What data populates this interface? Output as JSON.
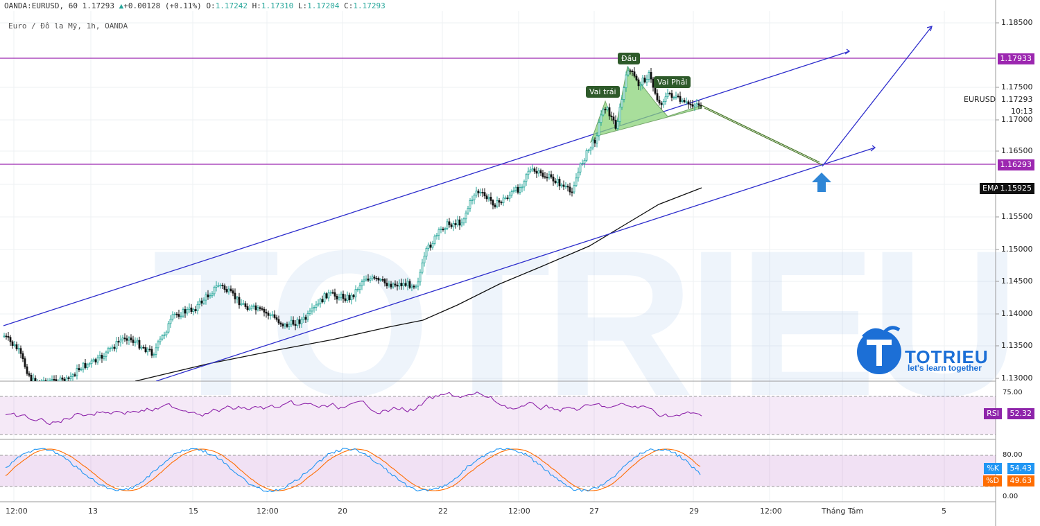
{
  "header": {
    "symbol": "OANDA:EURUSD",
    "interval": "60",
    "last": "1.17293",
    "change_arrow": "▲",
    "change": "+0.00128 (+0.11%)",
    "o_label": "O:",
    "o": "1.17242",
    "h_label": "H:",
    "h": "1.17310",
    "l_label": "L:",
    "l": "1.17204",
    "c_label": "C:",
    "c": "1.17293"
  },
  "subtitle": "Euro / Đô la Mỹ, 1h, OANDA",
  "watermark": {
    "logo_text": "TOTRIEU",
    "slogan": "let's learn together"
  },
  "price_axis": {
    "ticks": [
      "1.18500",
      "1.17500",
      "1.17000",
      "1.16500",
      "1.15500",
      "1.15000",
      "1.14500",
      "1.14000",
      "1.13500",
      "1.13000"
    ],
    "tags": {
      "level_high": "1.17933",
      "eurusd_label": "EURUSD",
      "eurusd_value": "1.17293",
      "countdown": "10:13",
      "level_low": "1.16293",
      "ema_label": "EMA",
      "ema_value": "1.15925"
    }
  },
  "rsi": {
    "tick": "75.00",
    "label": "RSI",
    "value": "52.32"
  },
  "stoch": {
    "ticks": [
      "80.00",
      "0.00"
    ],
    "k_label": "%K",
    "k_value": "54.43",
    "d_label": "%D",
    "d_value": "49.63"
  },
  "time_axis": [
    "12:00",
    "13",
    "15",
    "12:00",
    "20",
    "22",
    "12:00",
    "27",
    "29",
    "12:00",
    "Tháng Tám",
    "5"
  ],
  "annotations": {
    "left_shoulder": "Vai trái",
    "head": "Đầu",
    "right_shoulder": "Vai Phải"
  },
  "colors": {
    "up": "#26a69a",
    "down": "#111111",
    "channel": "#2d2dcc",
    "level": "#9c27b0",
    "pattern_fill": "#8bd37a",
    "projection": "#4a7a2a",
    "rsi_line": "#8e24aa",
    "k_line": "#2196f3",
    "d_line": "#ff6d00",
    "arrow": "#2f86d6"
  },
  "icons": [
    "up-arrow-icon",
    "logo-icon"
  ]
}
